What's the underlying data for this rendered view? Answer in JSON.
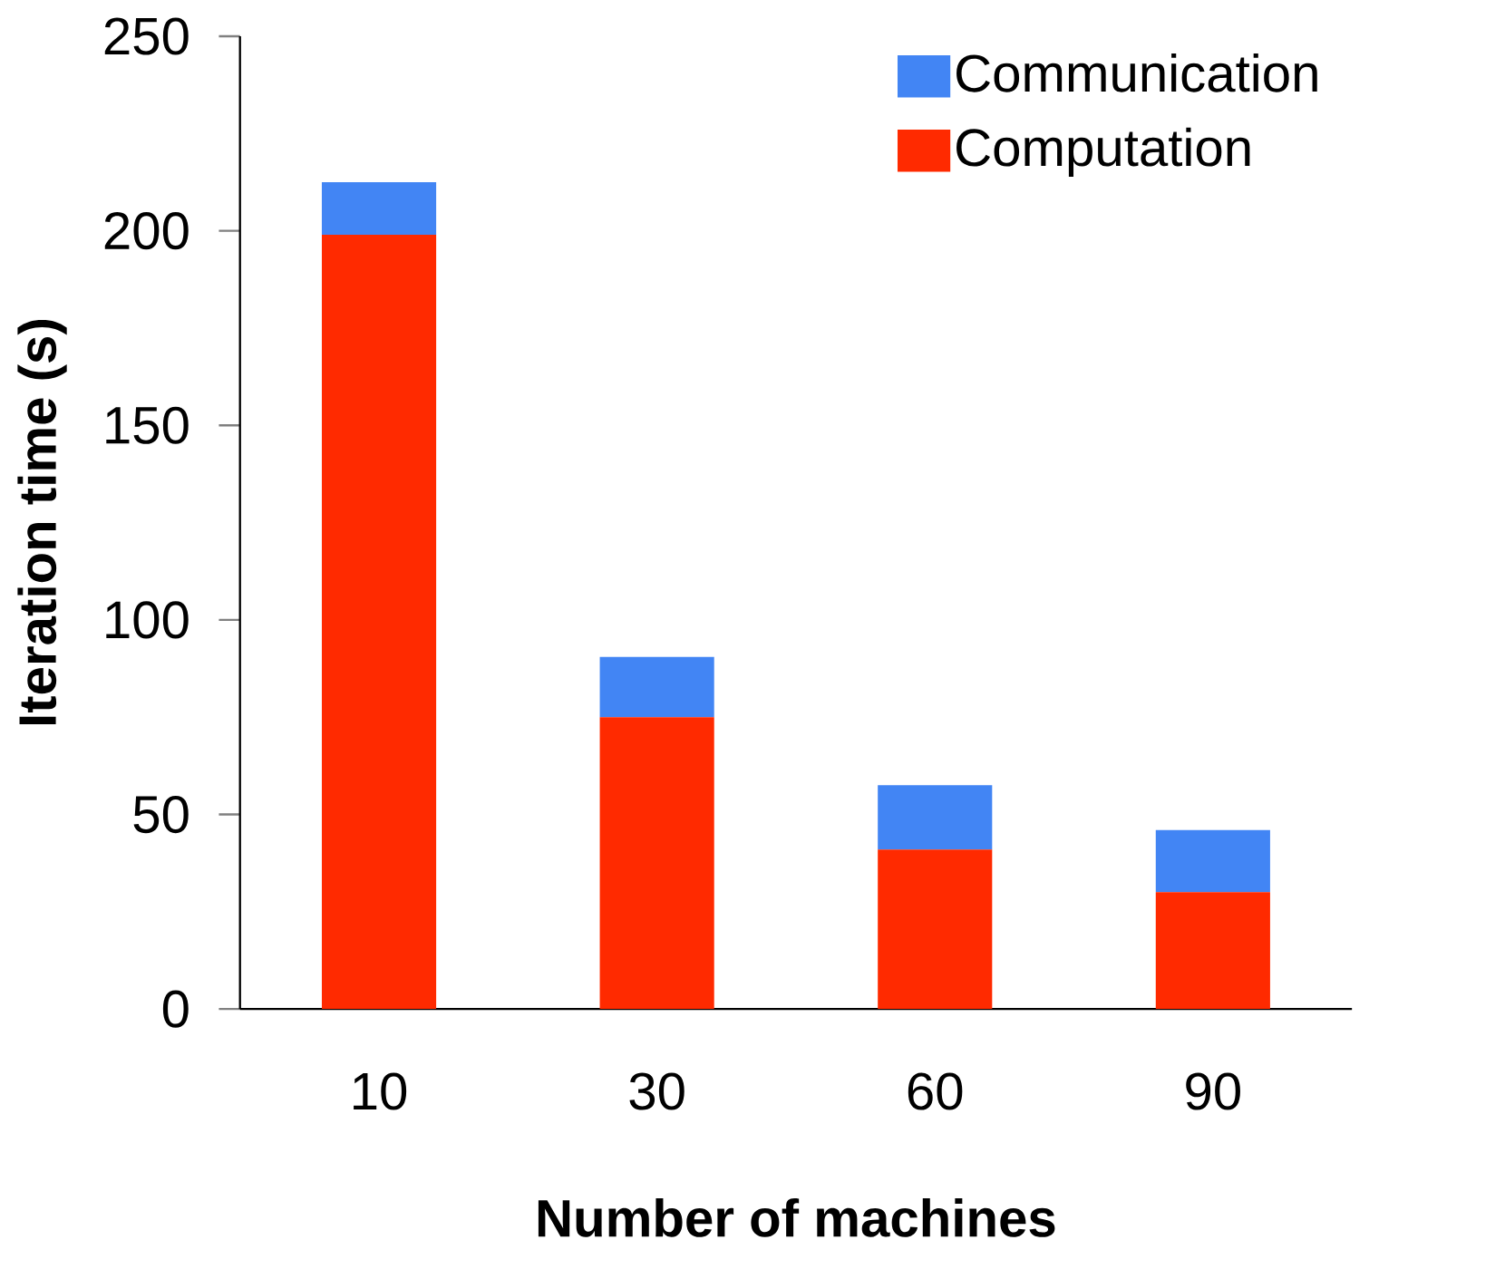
{
  "chart_data": {
    "type": "bar",
    "stacked": true,
    "categories": [
      "10",
      "30",
      "60",
      "90"
    ],
    "xlabel": "Number of machines",
    "ylabel": "Iteration time (s)",
    "ylim": [
      0,
      250
    ],
    "yticks": [
      0,
      50,
      100,
      150,
      200,
      250
    ],
    "legend": "top right",
    "series": [
      {
        "name": "Computation",
        "color": "#ff2a00",
        "values": [
          199,
          75,
          41,
          30
        ]
      },
      {
        "name": "Communication",
        "color": "#4285f4",
        "values": [
          13.5,
          15.5,
          16.5,
          16
        ]
      }
    ]
  }
}
